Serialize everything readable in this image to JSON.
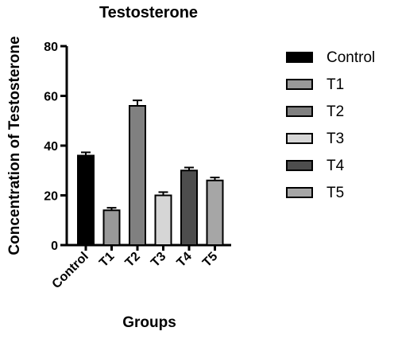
{
  "chart_data": {
    "type": "bar",
    "title": "Testosterone",
    "xlabel": "Groups",
    "ylabel": "Concentration of Testosterone",
    "ylim": [
      0,
      80
    ],
    "yticks": [
      0,
      20,
      40,
      60,
      80
    ],
    "categories": [
      "Control",
      "T1",
      "T2",
      "T3",
      "T4",
      "T5"
    ],
    "values": [
      36,
      14,
      56,
      20,
      30,
      26
    ],
    "errors": [
      1.3,
      1.0,
      2.2,
      1.3,
      1.2,
      1.2
    ],
    "colors": [
      "#000000",
      "#999999",
      "#808080",
      "#d6d6d6",
      "#4d4d4d",
      "#a6a6a6"
    ],
    "legend_position": "right",
    "legend": [
      "Control",
      "T1",
      "T2",
      "T3",
      "T4",
      "T5"
    ],
    "grid": false
  }
}
